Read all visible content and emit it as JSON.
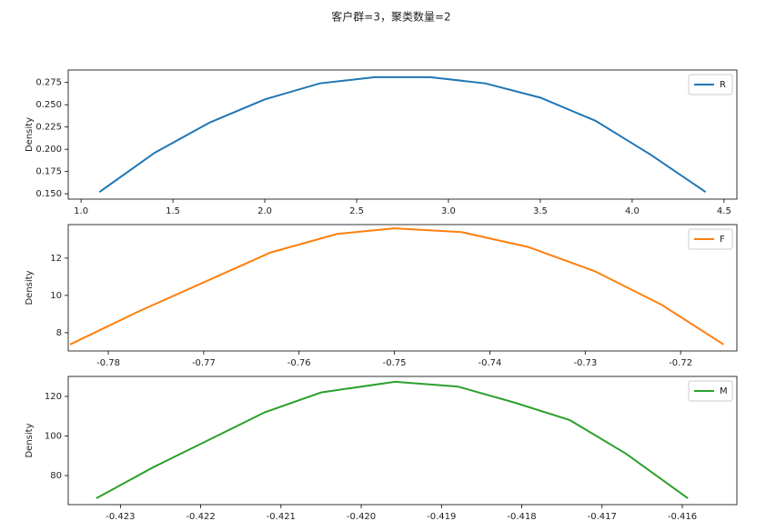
{
  "title": "客户群=3，聚类数量=2",
  "chart_data": [
    {
      "type": "line",
      "ylabel": "Density",
      "legend": "upper right",
      "x": [
        1.1,
        1.4,
        1.7,
        2.0,
        2.3,
        2.6,
        2.9,
        3.2,
        3.5,
        3.8,
        4.1,
        4.4
      ],
      "series": [
        {
          "name": "R",
          "color": "#1f77b4",
          "values": [
            0.152,
            0.196,
            0.23,
            0.256,
            0.274,
            0.281,
            0.281,
            0.274,
            0.258,
            0.232,
            0.194,
            0.152
          ]
        }
      ],
      "xlim": [
        0.93,
        4.57
      ],
      "ylim": [
        0.144,
        0.289
      ],
      "xticks": [
        {
          "value": 1,
          "label": "1.0"
        },
        1.5,
        {
          "value": 2,
          "label": "2.0"
        },
        2.5,
        {
          "value": 3,
          "label": "3.0"
        },
        3.5,
        {
          "value": 4,
          "label": "4.0"
        },
        4.5
      ],
      "yticks": [
        {
          "value": 0.15,
          "label": "0.150"
        },
        0.175,
        {
          "value": 0.2,
          "label": "0.200"
        },
        0.225,
        {
          "value": 0.25,
          "label": "0.250"
        },
        0.275
      ]
    },
    {
      "type": "line",
      "ylabel": "Density",
      "legend": "upper right",
      "x": [
        -0.784,
        -0.777,
        -0.77,
        -0.763,
        -0.756,
        -0.75,
        -0.743,
        -0.736,
        -0.729,
        -0.722,
        -0.7155
      ],
      "series": [
        {
          "name": "F",
          "color": "#ff7f0e",
          "values": [
            7.37,
            9.1,
            10.7,
            12.3,
            13.3,
            13.6,
            13.4,
            12.6,
            11.3,
            9.5,
            7.37
          ]
        }
      ],
      "xlim": [
        -0.7842,
        -0.7141
      ],
      "ylim": [
        7.02,
        13.8
      ],
      "xticks": [
        -0.78,
        -0.77,
        -0.76,
        -0.75,
        -0.74,
        -0.73,
        -0.72
      ],
      "yticks": [
        8,
        10,
        12
      ]
    },
    {
      "type": "line",
      "ylabel": "Density",
      "legend": "upper right",
      "x": [
        -0.4233,
        -0.4226,
        -0.4219,
        -0.4212,
        -0.4205,
        -0.41958,
        -0.4188,
        -0.4181,
        -0.4174,
        -0.4167,
        -0.41593
      ],
      "series": [
        {
          "name": "M",
          "color": "#2ca02c",
          "values": [
            68.5,
            84,
            98,
            112,
            122,
            127.4,
            125,
            117,
            108,
            91,
            68.5
          ]
        }
      ],
      "xlim": [
        -0.42365,
        -0.41532
      ],
      "ylim": [
        65.3,
        130.1
      ],
      "xticks": [
        -0.423,
        -0.422,
        -0.421,
        {
          "value": -0.42,
          "label": "-0.420"
        },
        -0.419,
        -0.418,
        -0.417,
        -0.416
      ],
      "yticks": [
        80,
        100,
        120
      ]
    }
  ]
}
